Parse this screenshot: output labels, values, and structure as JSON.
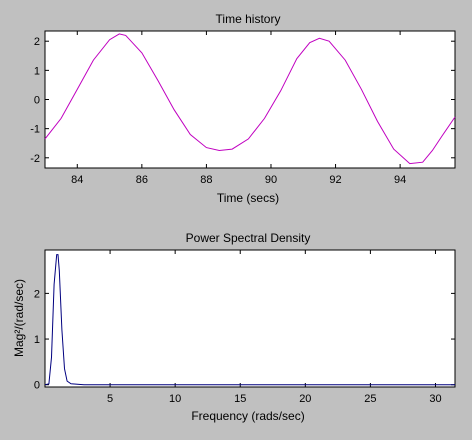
{
  "colors": {
    "figure_background": "#c0c0c0",
    "axes_background": "#ffffff",
    "time_series": "#c000c0",
    "psd_series": "#00007f"
  },
  "chart_data": [
    {
      "type": "line",
      "title": "Time history",
      "xlabel": "Time (secs)",
      "ylabel": "",
      "xlim": [
        83,
        95.7
      ],
      "ylim": [
        -2.35,
        2.35
      ],
      "xticks": [
        84,
        86,
        88,
        90,
        92,
        94
      ],
      "yticks": [
        -2,
        -1,
        0,
        1,
        2
      ],
      "xtick_labels": [
        "84",
        "86",
        "88",
        "90",
        "92",
        "94"
      ],
      "ytick_labels": [
        "-2",
        "-1",
        "0",
        "1",
        "2"
      ],
      "grid": false,
      "series": [
        {
          "x": [
            83.0,
            83.5,
            84.0,
            84.5,
            85.0,
            85.3,
            85.5,
            86.0,
            86.5,
            87.0,
            87.5,
            88.0,
            88.4,
            88.8,
            89.3,
            89.8,
            90.3,
            90.8,
            91.2,
            91.5,
            91.8,
            92.3,
            92.8,
            93.3,
            93.8,
            94.3,
            94.7,
            95.0,
            95.3,
            95.7
          ],
          "y": [
            -1.35,
            -0.65,
            0.35,
            1.35,
            2.05,
            2.25,
            2.2,
            1.6,
            0.65,
            -0.35,
            -1.2,
            -1.65,
            -1.75,
            -1.7,
            -1.35,
            -0.65,
            0.3,
            1.4,
            1.95,
            2.1,
            2.0,
            1.35,
            0.35,
            -0.75,
            -1.7,
            -2.2,
            -2.15,
            -1.75,
            -1.25,
            -0.6
          ]
        }
      ]
    },
    {
      "type": "line",
      "title": "Power Spectral Density",
      "xlabel": "Frequency (rads/sec)",
      "ylabel": "Mag²/(rad/sec)",
      "xlim": [
        0,
        31.5
      ],
      "ylim": [
        -0.05,
        2.95
      ],
      "xticks": [
        5,
        10,
        15,
        20,
        25,
        30
      ],
      "yticks": [
        0,
        1,
        2
      ],
      "xtick_labels": [
        "5",
        "10",
        "15",
        "20",
        "25",
        "30"
      ],
      "ytick_labels": [
        "0",
        "1",
        "2"
      ],
      "grid": false,
      "series": [
        {
          "x": [
            0.0,
            0.3,
            0.5,
            0.7,
            0.9,
            1.0,
            1.1,
            1.3,
            1.5,
            1.7,
            2.0,
            2.5,
            3.0,
            5.0,
            10.0,
            20.0,
            31.5
          ],
          "y": [
            0.0,
            0.02,
            0.6,
            2.2,
            2.85,
            2.85,
            2.5,
            1.2,
            0.35,
            0.08,
            0.02,
            0.01,
            0.0,
            0.0,
            0.0,
            0.0,
            0.0
          ]
        }
      ]
    }
  ]
}
